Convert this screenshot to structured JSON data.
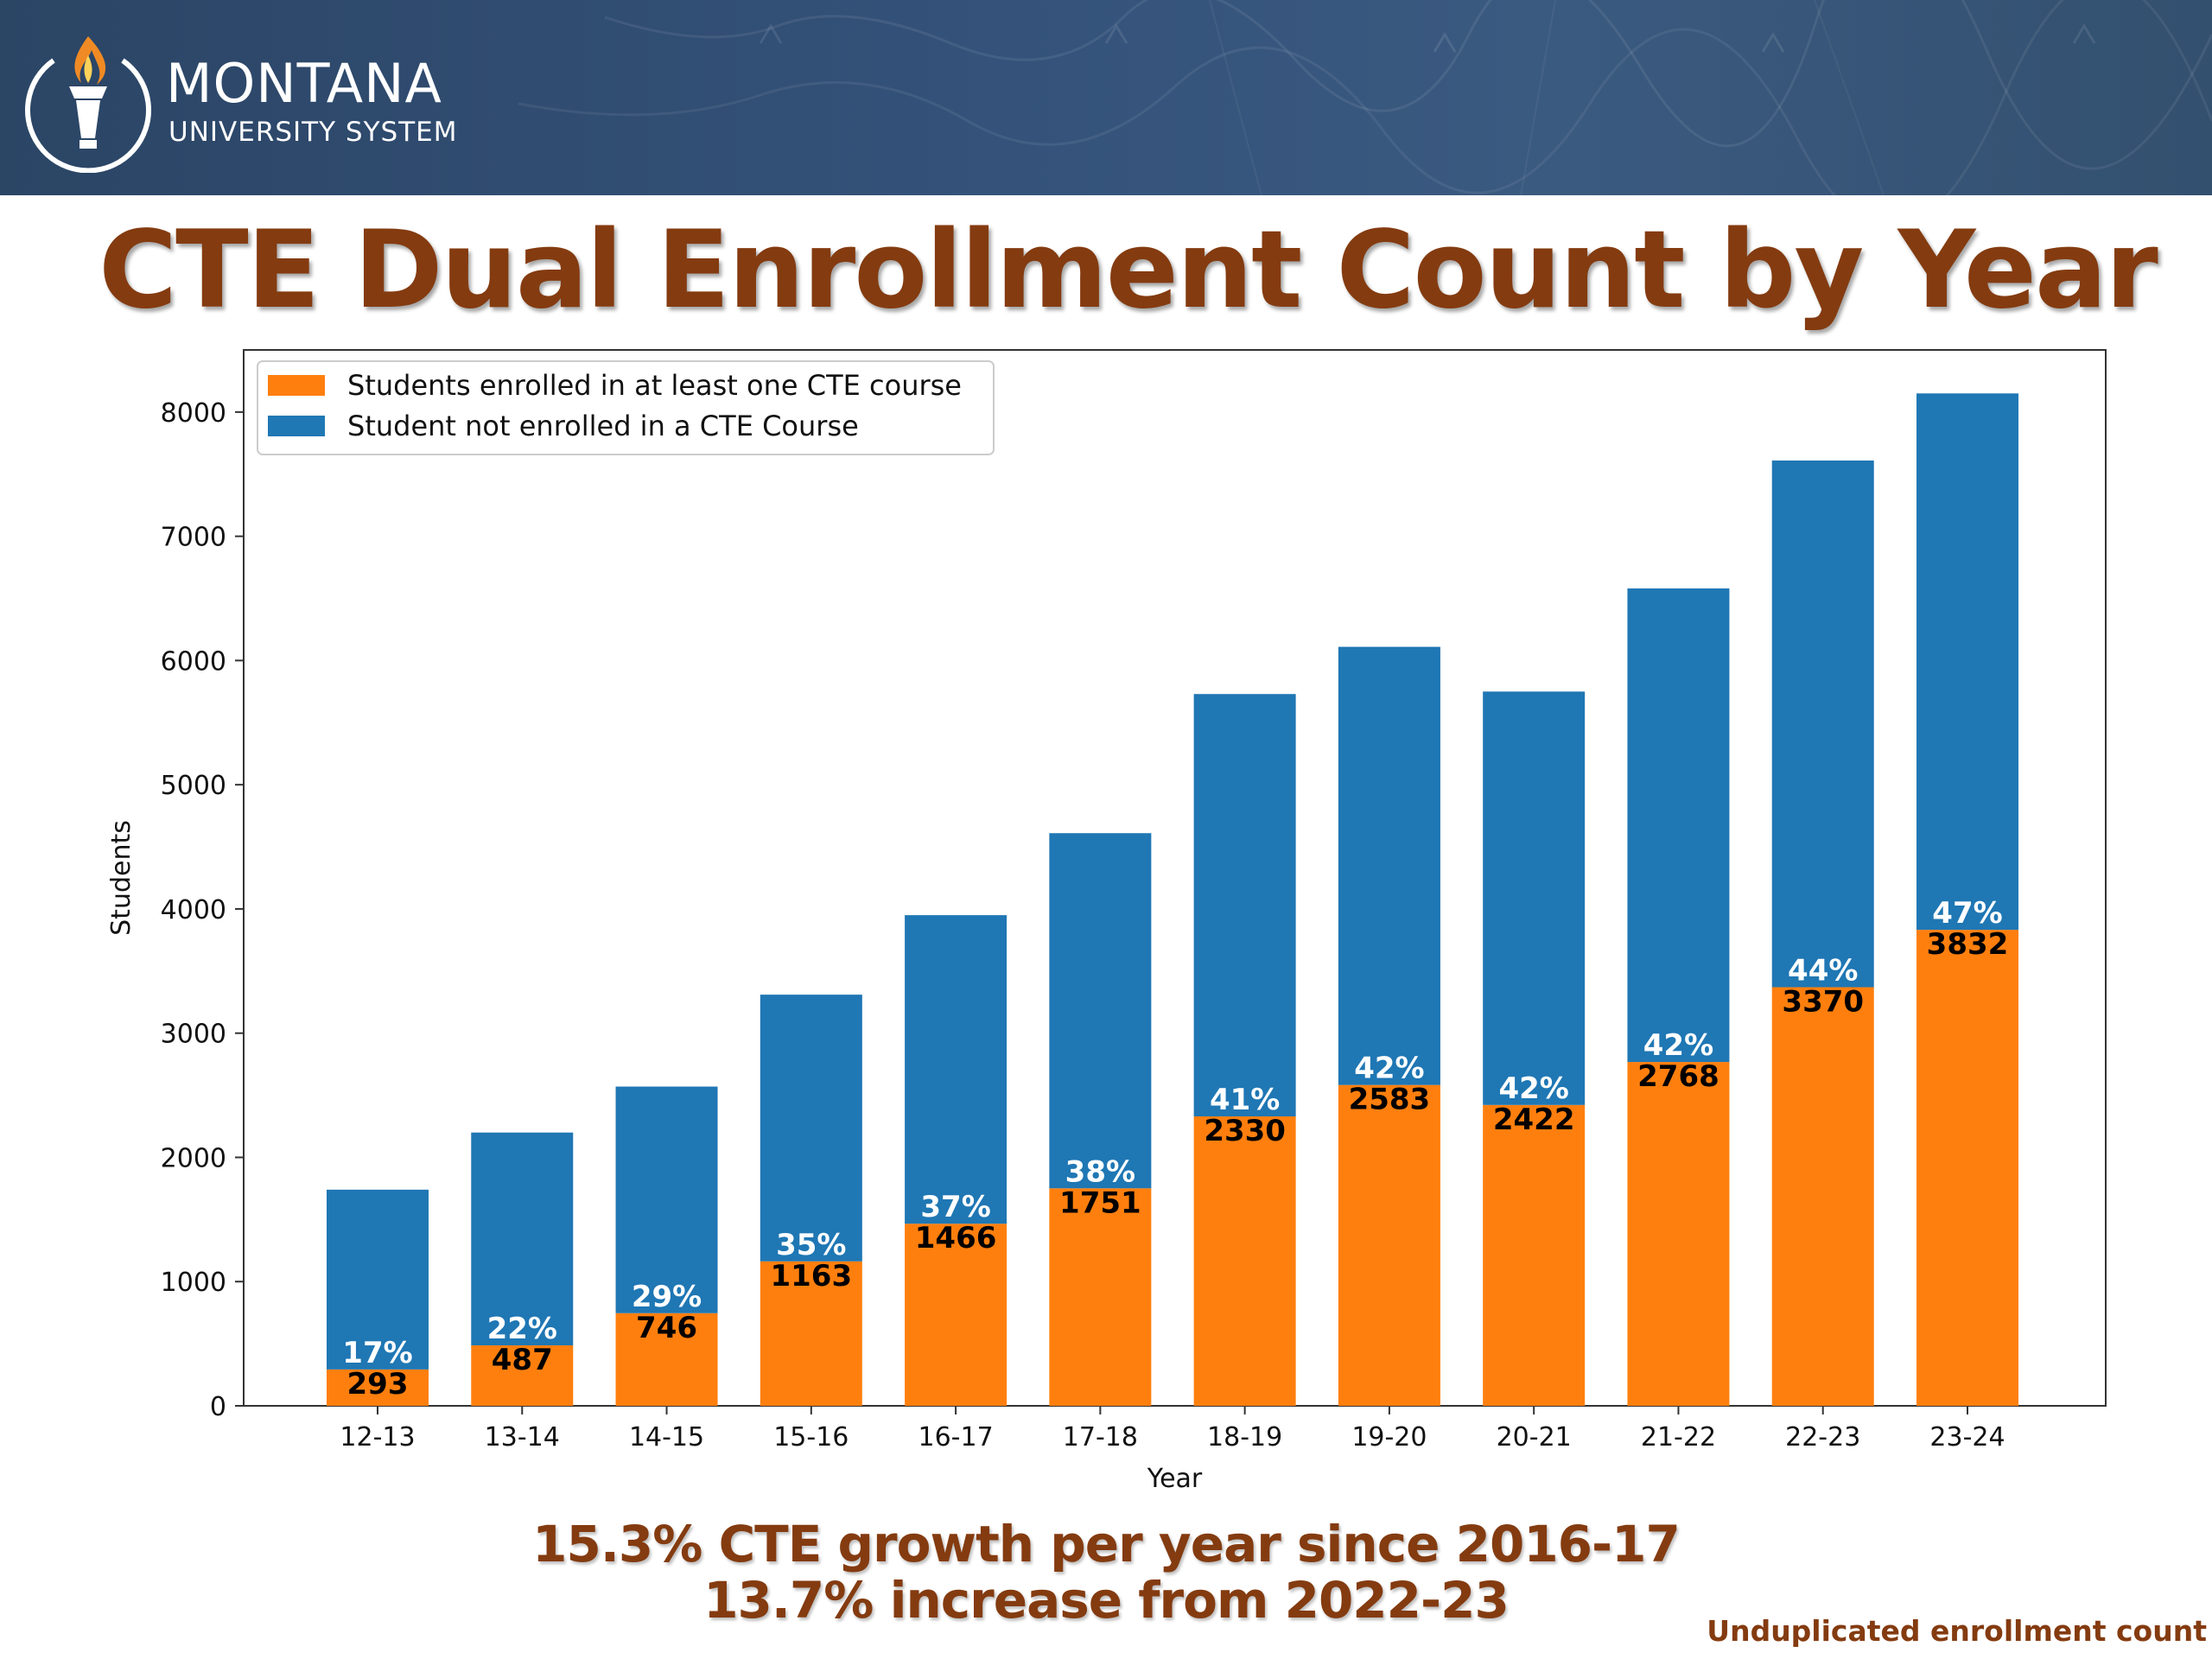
{
  "header": {
    "logo_main": "MONTANA",
    "logo_sub": "UNIVERSITY SYSTEM",
    "background_color": "#34527a"
  },
  "title": "CTE Dual Enrollment Count by Year",
  "colors": {
    "cte": "#ff7f0e",
    "non_cte": "#1f77b4",
    "title": "#843b10"
  },
  "chart_data": {
    "type": "bar",
    "stacked": true,
    "xlabel": "Year",
    "ylabel": "Students",
    "ylim": [
      0,
      8500
    ],
    "yticks": [
      0,
      1000,
      2000,
      3000,
      4000,
      5000,
      6000,
      7000,
      8000
    ],
    "categories": [
      "12-13",
      "13-14",
      "14-15",
      "15-16",
      "16-17",
      "17-18",
      "18-19",
      "19-20",
      "20-21",
      "21-22",
      "22-23",
      "23-24"
    ],
    "series": [
      {
        "name": "Students enrolled in at least one CTE course",
        "color": "#ff7f0e",
        "values": [
          293,
          487,
          746,
          1163,
          1466,
          1751,
          2330,
          2583,
          2422,
          2768,
          3370,
          3832
        ]
      },
      {
        "name": "Student not enrolled in a CTE Course",
        "color": "#1f77b4",
        "values": [
          1447,
          1713,
          1824,
          2147,
          2484,
          2859,
          3400,
          3527,
          3328,
          3812,
          4240,
          4318
        ]
      }
    ],
    "totals": [
      1740,
      2200,
      2570,
      3310,
      3950,
      4610,
      5730,
      6110,
      5750,
      6580,
      7610,
      8150
    ],
    "percent_labels": [
      "17%",
      "22%",
      "29%",
      "35%",
      "37%",
      "38%",
      "41%",
      "42%",
      "42%",
      "42%",
      "44%",
      "47%"
    ],
    "legend_position": "upper-left",
    "grid": false
  },
  "footnotes": {
    "line1": "15.3% CTE growth per year since 2016-17",
    "line2": "13.7% increase from 2022-23",
    "note": "Unduplicated enrollment count"
  }
}
